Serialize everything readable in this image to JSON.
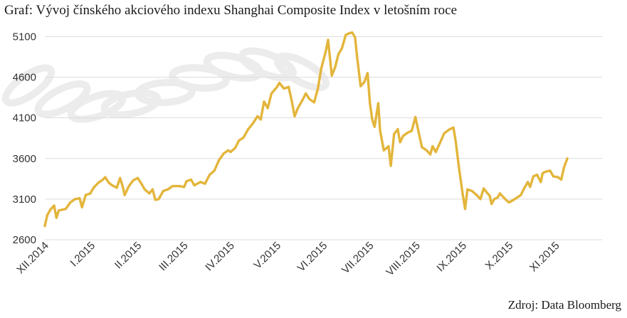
{
  "header": {
    "title": "Graf: Vývoj čínského akciového indexu Shanghai Composite Index v letošním roce"
  },
  "footer": {
    "source": "Zdroj: Data Bloomberg"
  },
  "colors": {
    "line": "#e3b53b",
    "grid": "#dcdcdc",
    "watermark": "#ececec"
  },
  "chart_data": {
    "type": "line",
    "title": "Graf: Vývoj čínského akciového indexu Shanghai Composite Index v letošním roce",
    "xlabel": "",
    "ylabel": "",
    "ylim": [
      2600,
      5200
    ],
    "yticks": [
      2600,
      3100,
      3600,
      4100,
      4600,
      5100
    ],
    "xlim": [
      0,
      12
    ],
    "xticks": [
      {
        "label": "XII.2014",
        "x": 0
      },
      {
        "label": "I.2015",
        "x": 1
      },
      {
        "label": "II.2015",
        "x": 2
      },
      {
        "label": "III.2015",
        "x": 3
      },
      {
        "label": "IV.2015",
        "x": 4
      },
      {
        "label": "V.2015",
        "x": 5
      },
      {
        "label": "VI.2015",
        "x": 6
      },
      {
        "label": "VII.2015",
        "x": 7
      },
      {
        "label": "VIII.2015",
        "x": 8
      },
      {
        "label": "IX.2015",
        "x": 9
      },
      {
        "label": "X.2015",
        "x": 10
      },
      {
        "label": "XI.2015",
        "x": 11
      }
    ],
    "grid": true,
    "legend": "none",
    "series": [
      {
        "values": [
          [
            0.0,
            2770
          ],
          [
            0.05,
            2900
          ],
          [
            0.12,
            2970
          ],
          [
            0.2,
            3020
          ],
          [
            0.25,
            2870
          ],
          [
            0.3,
            2960
          ],
          [
            0.45,
            2980
          ],
          [
            0.55,
            3060
          ],
          [
            0.65,
            3100
          ],
          [
            0.75,
            3110
          ],
          [
            0.8,
            3000
          ],
          [
            0.88,
            3150
          ],
          [
            0.98,
            3170
          ],
          [
            1.05,
            3240
          ],
          [
            1.15,
            3300
          ],
          [
            1.25,
            3340
          ],
          [
            1.3,
            3370
          ],
          [
            1.38,
            3300
          ],
          [
            1.45,
            3270
          ],
          [
            1.55,
            3240
          ],
          [
            1.62,
            3360
          ],
          [
            1.68,
            3250
          ],
          [
            1.72,
            3150
          ],
          [
            1.8,
            3250
          ],
          [
            1.9,
            3330
          ],
          [
            2.0,
            3360
          ],
          [
            2.08,
            3290
          ],
          [
            2.15,
            3220
          ],
          [
            2.25,
            3170
          ],
          [
            2.32,
            3220
          ],
          [
            2.38,
            3090
          ],
          [
            2.45,
            3100
          ],
          [
            2.55,
            3200
          ],
          [
            2.65,
            3220
          ],
          [
            2.75,
            3260
          ],
          [
            2.9,
            3260
          ],
          [
            3.0,
            3250
          ],
          [
            3.05,
            3320
          ],
          [
            3.15,
            3340
          ],
          [
            3.22,
            3270
          ],
          [
            3.35,
            3310
          ],
          [
            3.45,
            3290
          ],
          [
            3.55,
            3400
          ],
          [
            3.65,
            3450
          ],
          [
            3.75,
            3580
          ],
          [
            3.85,
            3660
          ],
          [
            3.95,
            3700
          ],
          [
            4.0,
            3680
          ],
          [
            4.1,
            3730
          ],
          [
            4.18,
            3820
          ],
          [
            4.28,
            3860
          ],
          [
            4.38,
            3960
          ],
          [
            4.48,
            4030
          ],
          [
            4.58,
            4120
          ],
          [
            4.65,
            4080
          ],
          [
            4.72,
            4300
          ],
          [
            4.8,
            4220
          ],
          [
            4.88,
            4400
          ],
          [
            5.0,
            4480
          ],
          [
            5.05,
            4530
          ],
          [
            5.15,
            4460
          ],
          [
            5.25,
            4480
          ],
          [
            5.32,
            4300
          ],
          [
            5.38,
            4120
          ],
          [
            5.45,
            4220
          ],
          [
            5.55,
            4320
          ],
          [
            5.62,
            4400
          ],
          [
            5.7,
            4330
          ],
          [
            5.8,
            4290
          ],
          [
            5.88,
            4460
          ],
          [
            5.95,
            4700
          ],
          [
            6.05,
            4920
          ],
          [
            6.1,
            5060
          ],
          [
            6.18,
            4620
          ],
          [
            6.25,
            4720
          ],
          [
            6.32,
            4880
          ],
          [
            6.4,
            4960
          ],
          [
            6.48,
            5120
          ],
          [
            6.55,
            5140
          ],
          [
            6.62,
            5150
          ],
          [
            6.68,
            5090
          ],
          [
            6.72,
            4870
          ],
          [
            6.8,
            4490
          ],
          [
            6.88,
            4540
          ],
          [
            6.95,
            4650
          ],
          [
            7.0,
            4280
          ],
          [
            7.05,
            4080
          ],
          [
            7.1,
            3990
          ],
          [
            7.18,
            4280
          ],
          [
            7.22,
            3940
          ],
          [
            7.3,
            3700
          ],
          [
            7.4,
            3750
          ],
          [
            7.45,
            3510
          ],
          [
            7.52,
            3900
          ],
          [
            7.6,
            3960
          ],
          [
            7.65,
            3800
          ],
          [
            7.72,
            3880
          ],
          [
            7.82,
            3920
          ],
          [
            7.9,
            3940
          ],
          [
            7.98,
            4110
          ],
          [
            8.05,
            3920
          ],
          [
            8.12,
            3740
          ],
          [
            8.22,
            3700
          ],
          [
            8.3,
            3650
          ],
          [
            8.35,
            3750
          ],
          [
            8.42,
            3680
          ],
          [
            8.5,
            3780
          ],
          [
            8.6,
            3910
          ],
          [
            8.72,
            3960
          ],
          [
            8.8,
            3980
          ],
          [
            8.85,
            3800
          ],
          [
            8.92,
            3480
          ],
          [
            8.96,
            3320
          ],
          [
            9.0,
            3150
          ],
          [
            9.05,
            2980
          ],
          [
            9.1,
            3220
          ],
          [
            9.2,
            3200
          ],
          [
            9.3,
            3150
          ],
          [
            9.38,
            3100
          ],
          [
            9.45,
            3230
          ],
          [
            9.52,
            3180
          ],
          [
            9.58,
            3140
          ],
          [
            9.62,
            3040
          ],
          [
            9.68,
            3100
          ],
          [
            9.75,
            3120
          ],
          [
            9.8,
            3170
          ],
          [
            9.88,
            3120
          ],
          [
            9.95,
            3080
          ],
          [
            10.0,
            3060
          ],
          [
            10.12,
            3100
          ],
          [
            10.25,
            3150
          ],
          [
            10.32,
            3230
          ],
          [
            10.4,
            3310
          ],
          [
            10.45,
            3250
          ],
          [
            10.52,
            3380
          ],
          [
            10.6,
            3400
          ],
          [
            10.68,
            3310
          ],
          [
            10.72,
            3420
          ],
          [
            10.8,
            3440
          ],
          [
            10.88,
            3450
          ],
          [
            10.95,
            3380
          ],
          [
            11.05,
            3370
          ],
          [
            11.12,
            3340
          ],
          [
            11.18,
            3490
          ],
          [
            11.25,
            3600
          ]
        ]
      }
    ]
  }
}
